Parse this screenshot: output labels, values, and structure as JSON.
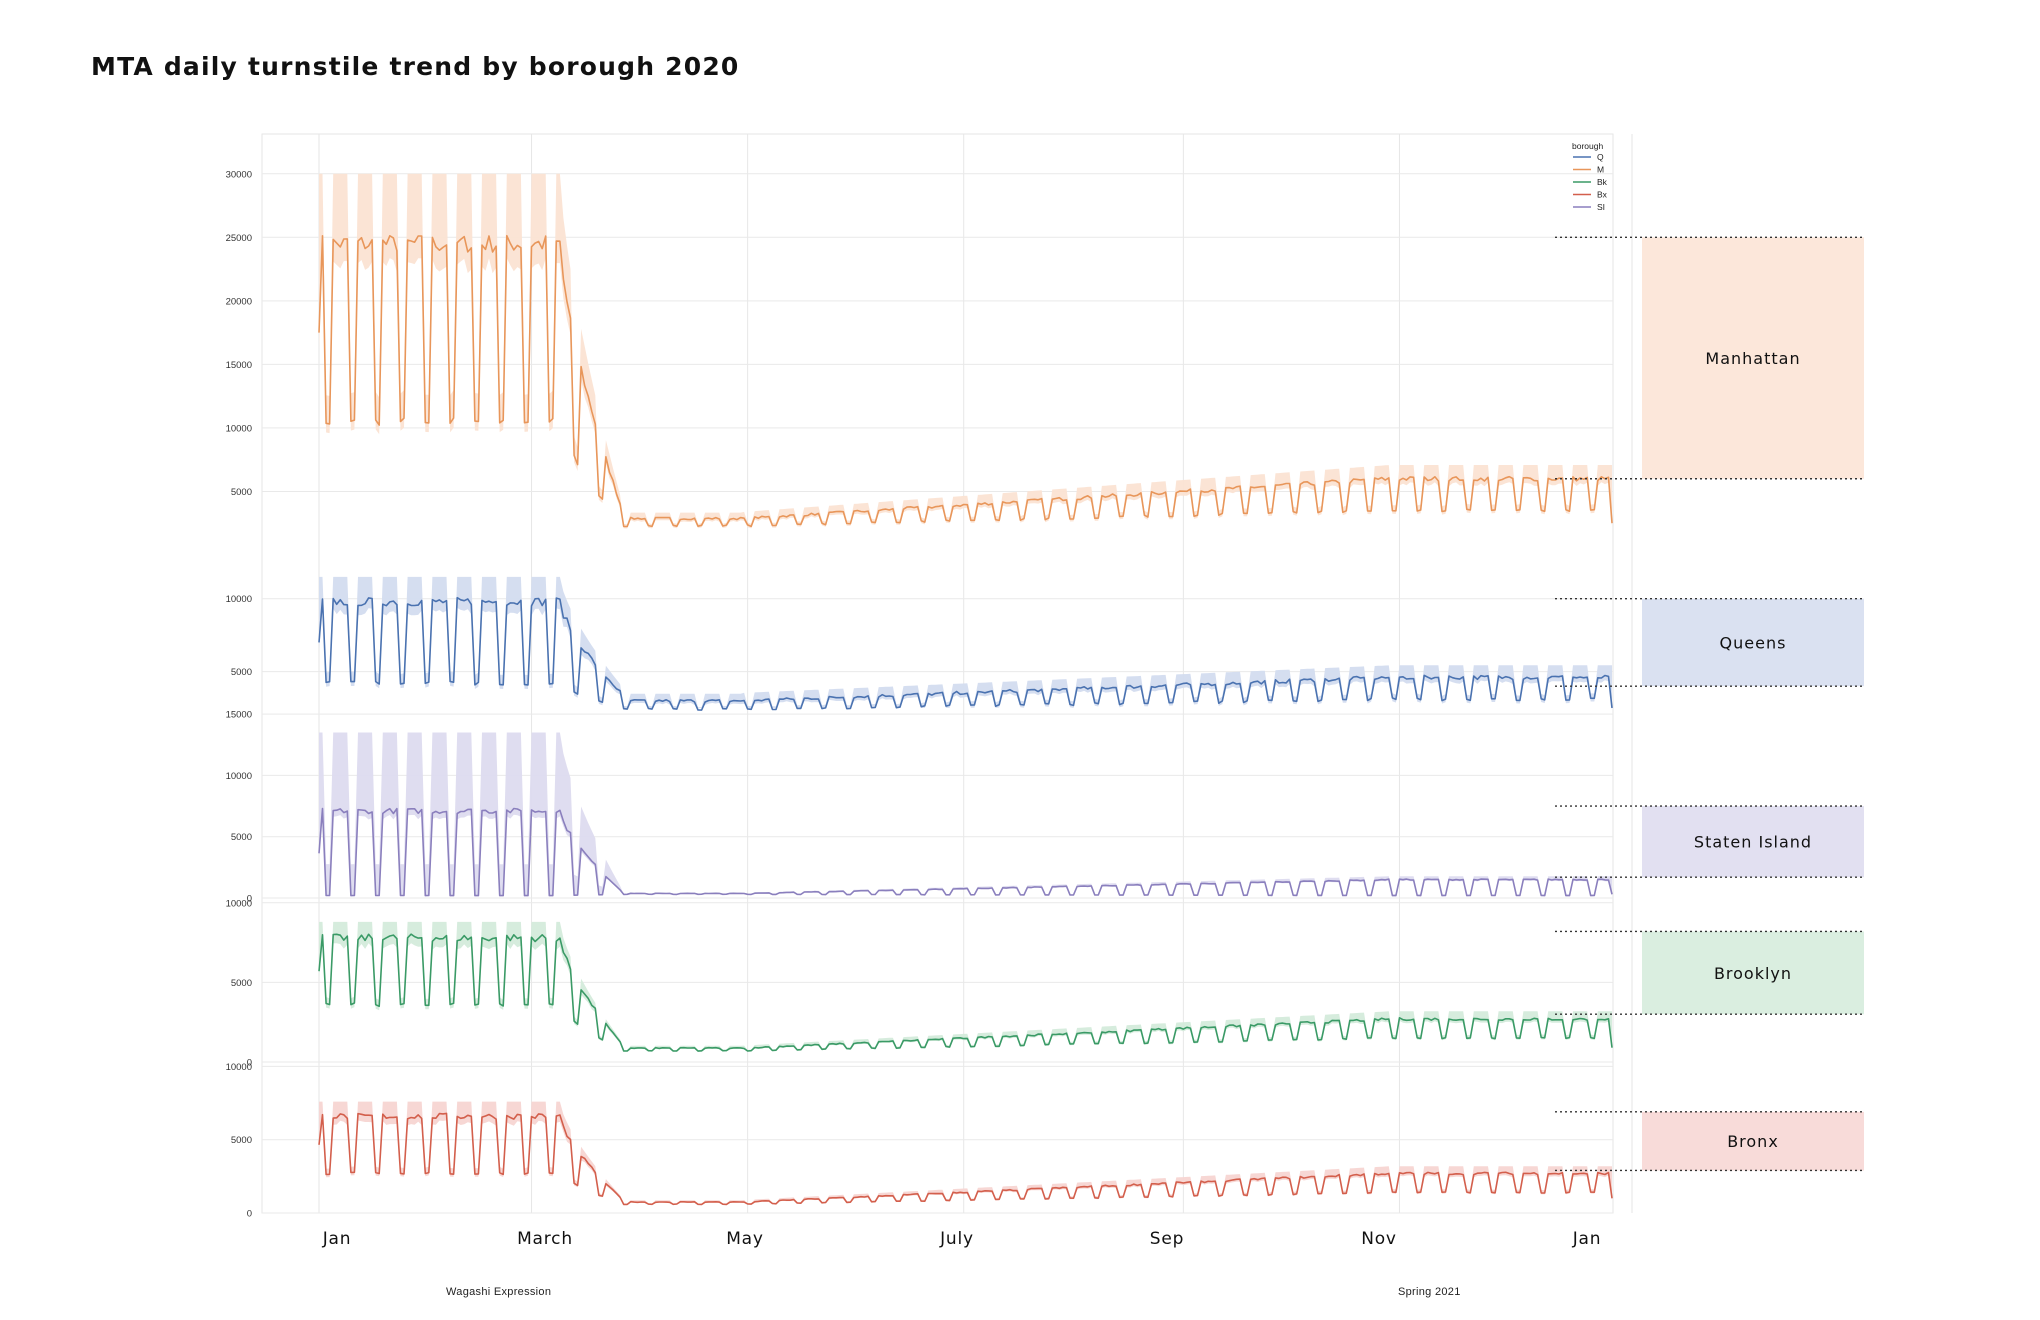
{
  "title": "MTA daily turnstile trend by borough 2020",
  "footer": {
    "left": "Wagashi Expression",
    "right": "Spring 2021"
  },
  "chart_data": {
    "type": "line",
    "title": "MTA daily turnstile trend by borough 2020",
    "x_ticks": [
      "Jan",
      "March",
      "May",
      "July",
      "Sep",
      "Nov",
      "Jan"
    ],
    "x_range": [
      "2020-01-01",
      "2020-12-31"
    ],
    "grid": true,
    "legend": {
      "title": "borough",
      "position": "top-right",
      "entries": [
        "Q",
        "M",
        "Bk",
        "Bx",
        "SI"
      ]
    },
    "panels": [
      {
        "label": "Manhattan",
        "series": "M",
        "color": "#e8965a",
        "band_color": "#fbe3d3",
        "ylim": [
          0,
          32500
        ],
        "yticks": [
          5000,
          10000,
          15000,
          20000,
          25000,
          30000
        ],
        "weekday_pre": 24500,
        "weekend_pre": 10500,
        "band_pre": 30000,
        "low_point": 2300,
        "weekday_end": 6000,
        "weekend_end": 3500,
        "last_value": 2500,
        "range_box": [
          6000,
          25000
        ]
      },
      {
        "label": "Queens",
        "series": "Q",
        "color": "#4a72b0",
        "band_color": "#d3dcef",
        "ylim": [
          2500,
          13000
        ],
        "yticks": [
          5000,
          10000
        ],
        "weekday_pre": 9800,
        "weekend_pre": 4200,
        "band_pre": 11500,
        "low_point": 2400,
        "weekday_end": 4600,
        "weekend_end": 3100,
        "last_value": 2500,
        "range_box": [
          4000,
          10000
        ]
      },
      {
        "label": "Staten Island",
        "series": "SI",
        "color": "#8a7fbd",
        "band_color": "#dddbef",
        "ylim": [
          0,
          15500
        ],
        "yticks": [
          0,
          5000,
          10000,
          15000
        ],
        "weekday_pre": 7100,
        "weekend_pre": 200,
        "band_pre": 13500,
        "low_point": 300,
        "weekday_end": 1500,
        "weekend_end": 200,
        "last_value": 300,
        "range_box": [
          1700,
          7500
        ]
      },
      {
        "label": "Brooklyn",
        "series": "Bk",
        "color": "#3a9a66",
        "band_color": "#d4ebdb",
        "ylim": [
          0,
          10300
        ],
        "yticks": [
          0,
          5000,
          10000
        ],
        "weekday_pre": 7800,
        "weekend_pre": 3600,
        "band_pre": 8800,
        "low_point": 700,
        "weekday_end": 2700,
        "weekend_end": 1500,
        "last_value": 900,
        "range_box": [
          3000,
          8200
        ]
      },
      {
        "label": "Bronx",
        "series": "Bx",
        "color": "#d35f4c",
        "band_color": "#f7d5d2",
        "ylim": [
          0,
          10300
        ],
        "yticks": [
          0,
          5000,
          10000
        ],
        "weekday_pre": 6600,
        "weekend_pre": 2700,
        "band_pre": 7600,
        "low_point": 600,
        "weekday_end": 2700,
        "weekend_end": 1400,
        "last_value": 1000,
        "range_box": [
          2900,
          6900
        ]
      }
    ]
  }
}
